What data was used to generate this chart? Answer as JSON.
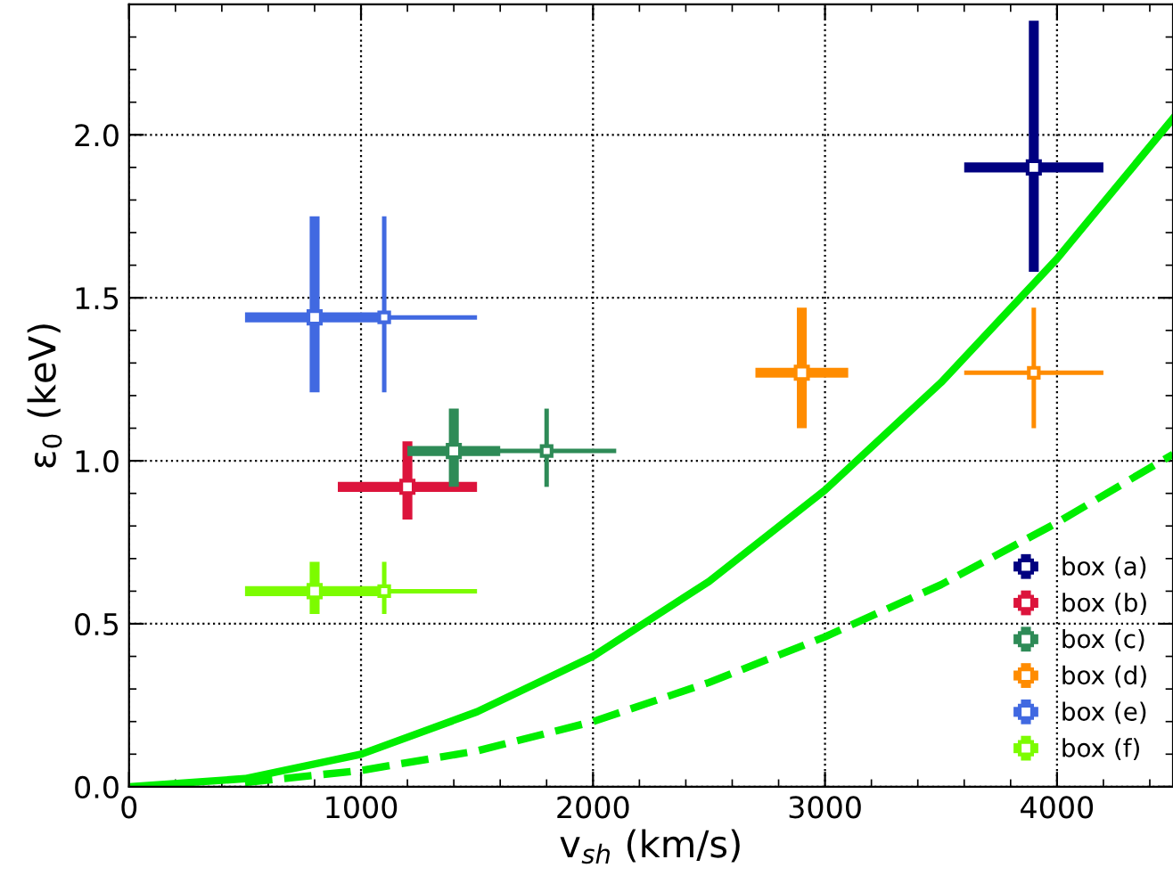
{
  "chart_data": {
    "type": "scatter",
    "xlabel": "v$_{sh}$ (km/s)",
    "ylabel": "ε$_{0}$ (keV)",
    "xlim": [
      0,
      4500
    ],
    "ylim": [
      0,
      2.4
    ],
    "xticks": [
      0,
      1000,
      2000,
      3000,
      4000
    ],
    "yticks": [
      {
        "value": 0,
        "label": "0.0"
      },
      0.5,
      {
        "value": 1,
        "label": "1.0"
      },
      1.5,
      {
        "value": 2,
        "label": "2.0"
      }
    ],
    "grid": true,
    "legend": "bottom right",
    "series": [
      {
        "name": "box (a)",
        "color": "#000080",
        "marker": "square",
        "x": [
          3900
        ],
        "values": [
          1.9
        ],
        "errors": [
          [
            1.58,
            2.35
          ]
        ],
        "xerrors": [
          [
            3600,
            4200
          ]
        ]
      },
      {
        "name": "box (b)",
        "color": "#dc143c",
        "marker": "square",
        "x": [
          1200
        ],
        "values": [
          0.92
        ],
        "errors": [
          [
            0.82,
            1.06
          ]
        ],
        "xerrors": [
          [
            900,
            1500
          ]
        ]
      },
      {
        "name": "box (c)",
        "color": "#2e8b57",
        "marker": "square",
        "x": [
          1400
        ],
        "values": [
          1.03
        ],
        "errors": [
          [
            0.92,
            1.16
          ]
        ],
        "xerrors": [
          [
            1200,
            1600
          ]
        ]
      },
      {
        "name": "box (d)",
        "color": "#ff8c00",
        "marker": "square",
        "x": [
          2900
        ],
        "values": [
          1.27
        ],
        "errors": [
          [
            1.1,
            1.47
          ]
        ],
        "xerrors": [
          [
            2700,
            3100
          ]
        ]
      },
      {
        "name": "box (e)",
        "color": "#4169e1",
        "marker": "square",
        "x": [
          800
        ],
        "values": [
          1.44
        ],
        "errors": [
          [
            1.21,
            1.75
          ]
        ],
        "xerrors": [
          [
            500,
            1100
          ]
        ]
      },
      {
        "name": "box (f)",
        "color": "#7cfc00",
        "marker": "square",
        "x": [
          800
        ],
        "values": [
          0.6
        ],
        "errors": [
          [
            0.53,
            0.69
          ]
        ],
        "xerrors": [
          [
            500,
            1100
          ]
        ]
      },
      {
        "color": "#2e8b57",
        "marker": "square",
        "x": [
          1800
        ],
        "values": [
          1.03
        ],
        "errors": [
          [
            0.92,
            1.16
          ]
        ],
        "xerrors": [
          [
            1500,
            2100
          ]
        ]
      },
      {
        "color": "#ff8c00",
        "marker": "square",
        "x": [
          3900
        ],
        "values": [
          1.27
        ],
        "errors": [
          [
            1.1,
            1.47
          ]
        ],
        "xerrors": [
          [
            3600,
            4200
          ]
        ]
      },
      {
        "color": "#4169e1",
        "marker": "square",
        "x": [
          1100
        ],
        "values": [
          1.44
        ],
        "errors": [
          [
            1.21,
            1.75
          ]
        ],
        "xerrors": [
          [
            800,
            1500
          ]
        ]
      },
      {
        "color": "#7cfc00",
        "marker": "square",
        "x": [
          1100
        ],
        "values": [
          0.6
        ],
        "errors": [
          [
            0.53,
            0.69
          ]
        ],
        "xerrors": [
          [
            800,
            1500
          ]
        ]
      },
      {
        "type": "line",
        "color": "#00ee00",
        "marker": "none",
        "line_style": "solid",
        "x": [
          0,
          500,
          1000,
          1500,
          2000,
          2500,
          3000,
          3500,
          4000,
          4500
        ],
        "values": [
          0,
          0.025,
          0.1,
          0.23,
          0.4,
          0.63,
          0.91,
          1.24,
          1.62,
          2.05
        ]
      },
      {
        "type": "line",
        "color": "#00ee00",
        "marker": "none",
        "line_style": "dashed",
        "x": [
          500,
          1000,
          1500,
          2000,
          2500,
          3000,
          3500,
          4000,
          4500
        ],
        "values": [
          0.013,
          0.05,
          0.11,
          0.2,
          0.32,
          0.46,
          0.62,
          0.81,
          1.02
        ]
      }
    ]
  }
}
